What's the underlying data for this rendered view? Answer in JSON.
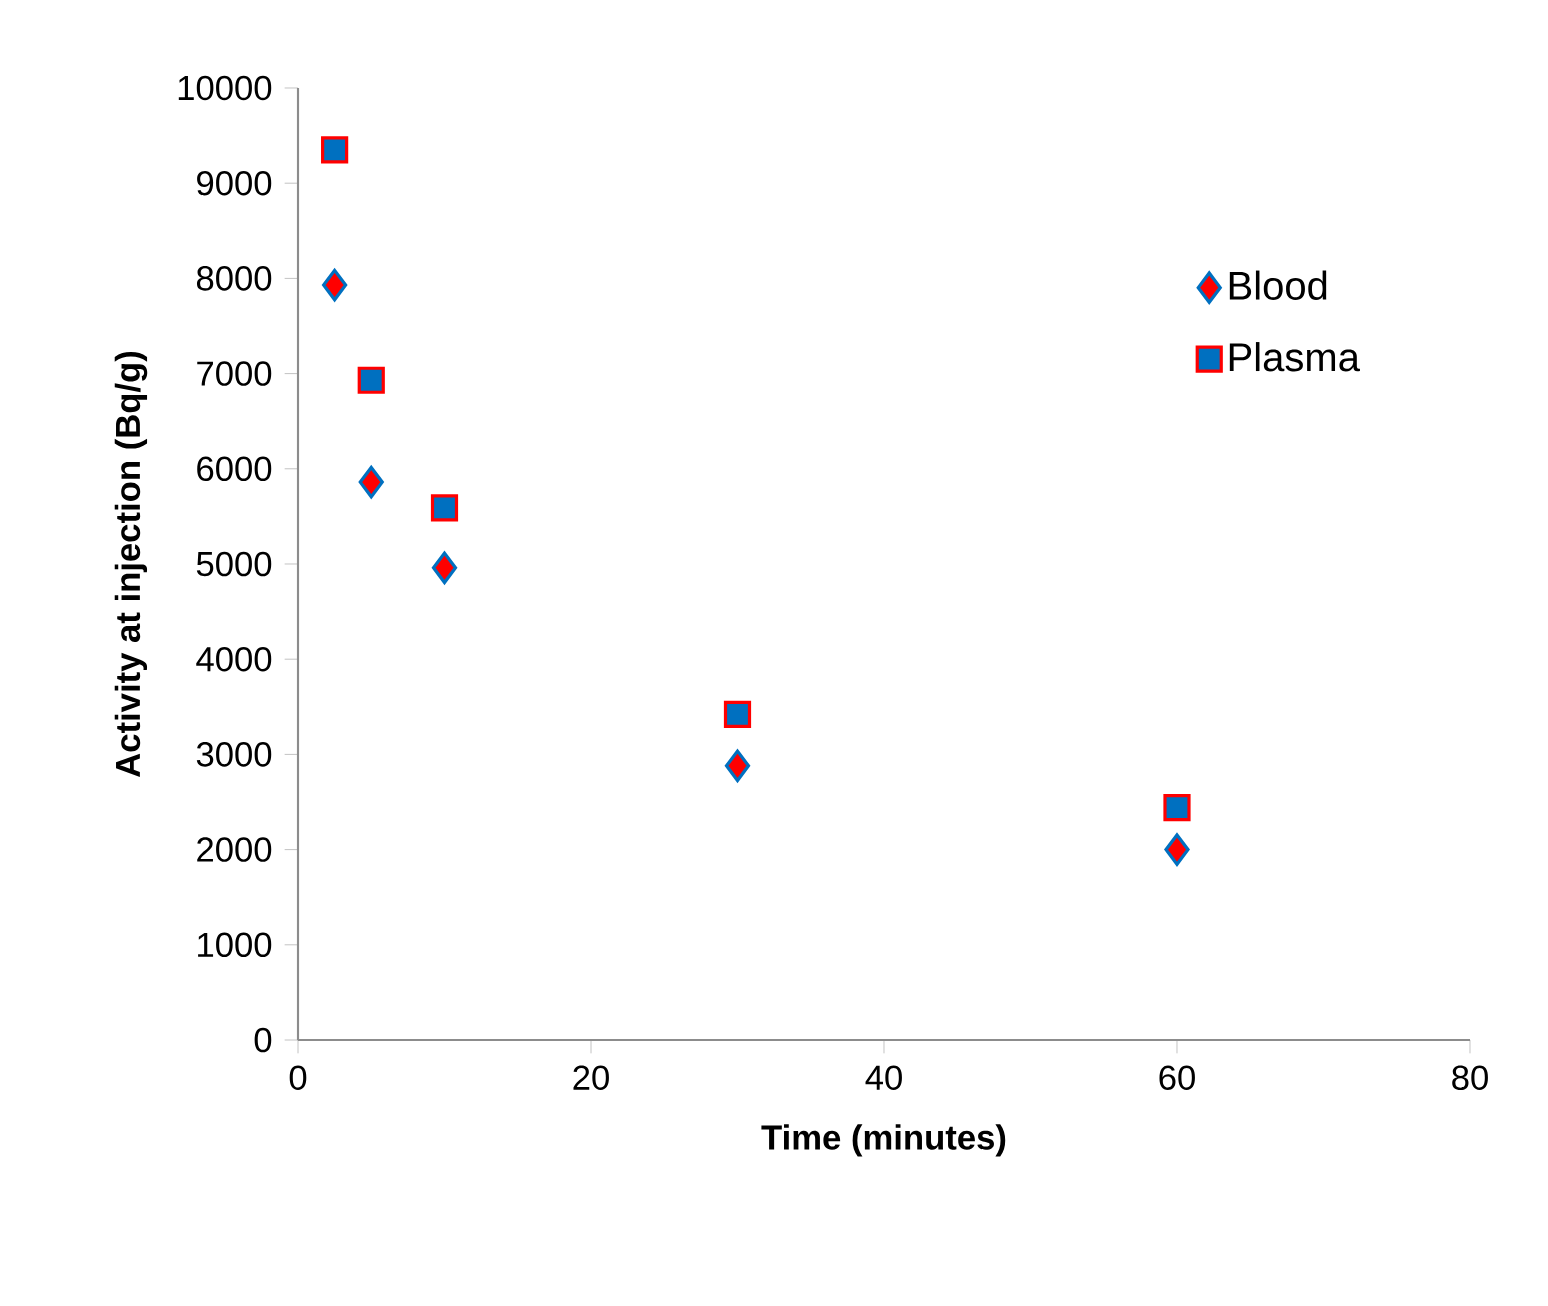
{
  "chart_data": {
    "type": "scatter",
    "xlabel": "Time (minutes)",
    "ylabel": "Activity at injection (Bq/g)",
    "x": [
      2.5,
      5,
      10,
      30,
      60
    ],
    "series": [
      {
        "name": "Blood",
        "color": "#ff0000",
        "marker": "diamond",
        "values": [
          7930,
          5860,
          4960,
          2880,
          2000
        ]
      },
      {
        "name": "Plasma",
        "color": "#0070c0",
        "marker": "square",
        "values": [
          9350,
          6930,
          5590,
          3420,
          2440
        ]
      }
    ],
    "xlim": [
      0,
      80
    ],
    "xticks": [
      0,
      20,
      40,
      60,
      80
    ],
    "ylim": [
      0,
      10000
    ],
    "yticks": [
      0,
      1000,
      2000,
      3000,
      4000,
      5000,
      6000,
      7000,
      8000,
      9000,
      10000
    ],
    "grid": false,
    "legend": "right"
  }
}
